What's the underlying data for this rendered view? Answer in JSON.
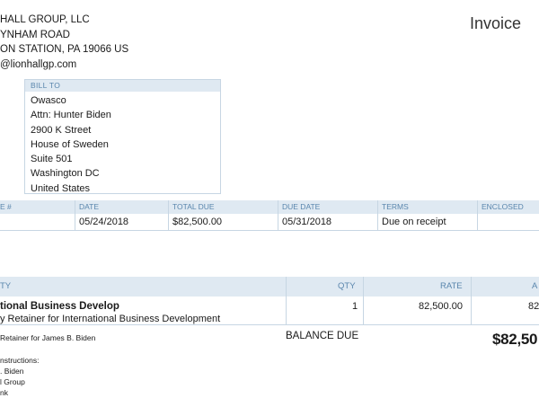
{
  "company": {
    "lines": [
      "HALL GROUP, LLC",
      "YNHAM ROAD",
      "ON STATION, PA  19066 US",
      "@lionhallgp.com"
    ]
  },
  "document_title": "Invoice",
  "bill_to": {
    "label": "BILL TO",
    "lines": [
      "Owasco",
      "Attn: Hunter Biden",
      "2900 K Street",
      "House of Sweden",
      "Suite 501",
      "Washington DC",
      "United States"
    ]
  },
  "meta": {
    "headers": {
      "invoice_no": "E #",
      "date": "DATE",
      "total_due": "TOTAL DUE",
      "due_date": "DUE DATE",
      "terms": "TERMS",
      "enclosed": "ENCLOSED"
    },
    "values": {
      "date": "05/24/2018",
      "total_due": "$82,500.00",
      "due_date": "05/31/2018",
      "terms": "Due on receipt"
    }
  },
  "items": {
    "headers": {
      "activity": "TY",
      "qty": "QTY",
      "rate": "RATE",
      "amount": "A"
    },
    "rows": [
      {
        "name": "tional Business Develop",
        "description": "y Retainer for International Business Development",
        "qty": "1",
        "rate": "82,500.00",
        "amount": "82"
      }
    ]
  },
  "memo": "Retainer for James B. Biden",
  "balance": {
    "label": "BALANCE DUE",
    "value": "$82,50"
  },
  "instructions": {
    "lines": [
      "nstructions:",
      ". Biden",
      "l Group",
      "nk"
    ]
  },
  "colors": {
    "header_bg": "#dfe9f2",
    "header_text": "#5a86ad",
    "border": "#c7d6e3"
  }
}
